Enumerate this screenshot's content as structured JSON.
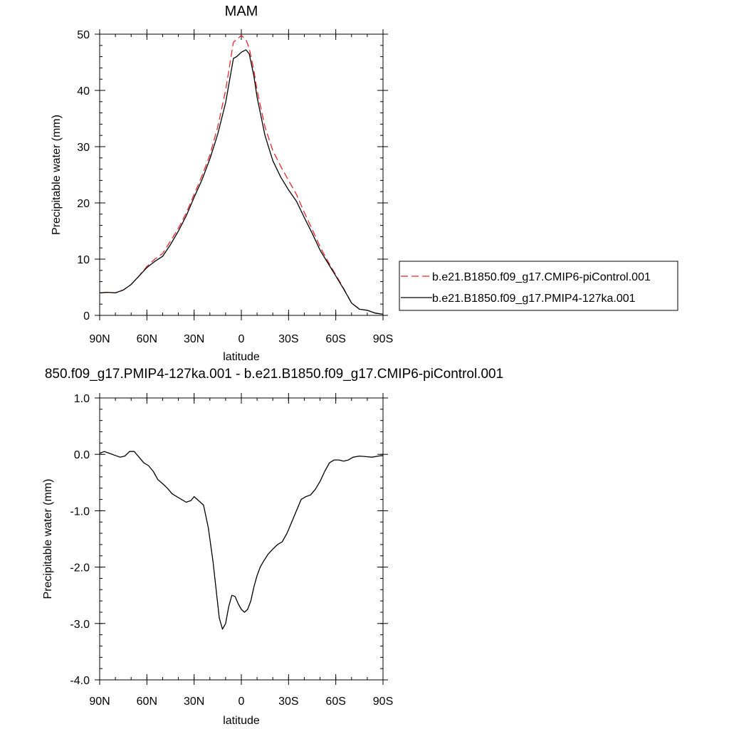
{
  "chart_data": [
    {
      "type": "line",
      "title": "MAM",
      "xlabel": "latitude",
      "ylabel": "Precipitable water (mm)",
      "xlim": [
        90,
        -90
      ],
      "ylim": [
        0,
        50
      ],
      "xticks": [
        {
          "value": 90,
          "label": "90N"
        },
        {
          "value": 60,
          "label": "60N"
        },
        {
          "value": 30,
          "label": "30N"
        },
        {
          "value": 0,
          "label": "0"
        },
        {
          "value": -30,
          "label": "30S"
        },
        {
          "value": -60,
          "label": "60S"
        },
        {
          "value": -90,
          "label": "90S"
        }
      ],
      "yticks": [
        {
          "value": 0,
          "label": "0"
        },
        {
          "value": 10,
          "label": "10"
        },
        {
          "value": 20,
          "label": "20"
        },
        {
          "value": 30,
          "label": "30"
        },
        {
          "value": 40,
          "label": "40"
        },
        {
          "value": 50,
          "label": "50"
        }
      ],
      "legend_position": "right",
      "series": [
        {
          "name": "b.e21.B1850.f09_g17.CMIP6-piControl.001",
          "color": "#e8262a",
          "dash": "dashed",
          "x": [
            90,
            85,
            80,
            75,
            70,
            65,
            60,
            55,
            50,
            45,
            40,
            35,
            30,
            25,
            20,
            15,
            10,
            5,
            3,
            0,
            -3,
            -5,
            -8,
            -10,
            -15,
            -20,
            -25,
            -30,
            -35,
            -40,
            -45,
            -50,
            -55,
            -60,
            -65,
            -70,
            -75,
            -80,
            -85,
            -90
          ],
          "y": [
            4.0,
            4.1,
            4.0,
            4.5,
            5.5,
            7.0,
            8.7,
            10.0,
            11.0,
            13.2,
            15.5,
            18.2,
            21.5,
            24.8,
            28.5,
            33.5,
            40.0,
            48.6,
            49.0,
            49.8,
            49.0,
            47.5,
            43.5,
            40.0,
            33.5,
            29.3,
            26.5,
            24.0,
            21.5,
            18.3,
            15.3,
            12.2,
            9.6,
            7.2,
            4.8,
            2.2,
            1.1,
            0.9,
            0.4,
            0.2
          ]
        },
        {
          "name": "b.e21.B1850.f09_g17.PMIP4-127ka.001",
          "color": "#000000",
          "dash": "solid",
          "x": [
            90,
            85,
            80,
            75,
            70,
            65,
            60,
            55,
            50,
            45,
            40,
            35,
            30,
            25,
            20,
            15,
            10,
            5,
            3,
            0,
            -3,
            -5,
            -8,
            -10,
            -15,
            -20,
            -25,
            -30,
            -35,
            -40,
            -45,
            -50,
            -55,
            -60,
            -65,
            -70,
            -75,
            -80,
            -85,
            -90
          ],
          "y": [
            4.0,
            4.1,
            4.0,
            4.5,
            5.5,
            7.0,
            8.5,
            9.6,
            10.5,
            12.6,
            15.0,
            17.7,
            21.0,
            24.1,
            27.8,
            32.2,
            37.8,
            45.7,
            46.0,
            46.8,
            47.2,
            46.5,
            42.5,
            38.8,
            32.0,
            27.5,
            24.6,
            22.3,
            20.3,
            17.4,
            14.6,
            11.6,
            9.3,
            7.0,
            4.7,
            2.2,
            1.1,
            0.9,
            0.4,
            0.2
          ]
        }
      ]
    },
    {
      "type": "line",
      "title": "850.f09_g17.PMIP4-127ka.001 - b.e21.B1850.f09_g17.CMIP6-piControl.001",
      "xlabel": "latitude",
      "ylabel": "Precipitable water (mm)",
      "xlim": [
        90,
        -90
      ],
      "ylim": [
        -4.0,
        1.0
      ],
      "xticks": [
        {
          "value": 90,
          "label": "90N"
        },
        {
          "value": 60,
          "label": "60N"
        },
        {
          "value": 30,
          "label": "30N"
        },
        {
          "value": 0,
          "label": "0"
        },
        {
          "value": -30,
          "label": "30S"
        },
        {
          "value": -60,
          "label": "60S"
        },
        {
          "value": -90,
          "label": "90S"
        }
      ],
      "yticks": [
        {
          "value": -4.0,
          "label": "-4.0"
        },
        {
          "value": -3.0,
          "label": "-3.0"
        },
        {
          "value": -2.0,
          "label": "-2.0"
        },
        {
          "value": -1.0,
          "label": "-1.0"
        },
        {
          "value": 0.0,
          "label": "0.0"
        },
        {
          "value": 1.0,
          "label": "1.0"
        }
      ],
      "series": [
        {
          "color": "#000000",
          "dash": "solid",
          "x": [
            90,
            87,
            84,
            80,
            77,
            74,
            71,
            68,
            65,
            62,
            59,
            56,
            53,
            50,
            47,
            44,
            41,
            38,
            35,
            32,
            30,
            28,
            26,
            24,
            21,
            18,
            16,
            14,
            12,
            10,
            8,
            6,
            4,
            2,
            0,
            -2,
            -4,
            -6,
            -8,
            -10,
            -12,
            -14,
            -17,
            -20,
            -23,
            -26,
            -29,
            -32,
            -35,
            -38,
            -41,
            -44,
            -47,
            -50,
            -53,
            -56,
            -59,
            -62,
            -65,
            -68,
            -71,
            -75,
            -79,
            -83,
            -87,
            -90
          ],
          "y": [
            0.02,
            0.05,
            0.02,
            -0.02,
            -0.05,
            -0.03,
            0.05,
            0.05,
            -0.05,
            -0.15,
            -0.2,
            -0.3,
            -0.45,
            -0.52,
            -0.6,
            -0.7,
            -0.75,
            -0.8,
            -0.85,
            -0.82,
            -0.75,
            -0.8,
            -0.85,
            -0.9,
            -1.3,
            -1.9,
            -2.4,
            -2.9,
            -3.1,
            -3.0,
            -2.7,
            -2.5,
            -2.52,
            -2.65,
            -2.75,
            -2.8,
            -2.75,
            -2.6,
            -2.35,
            -2.15,
            -2.0,
            -1.9,
            -1.77,
            -1.68,
            -1.6,
            -1.55,
            -1.4,
            -1.2,
            -1.0,
            -0.8,
            -0.75,
            -0.72,
            -0.62,
            -0.48,
            -0.3,
            -0.15,
            -0.1,
            -0.1,
            -0.12,
            -0.1,
            -0.05,
            -0.03,
            -0.04,
            -0.05,
            -0.03,
            -0.02
          ]
        }
      ]
    }
  ]
}
